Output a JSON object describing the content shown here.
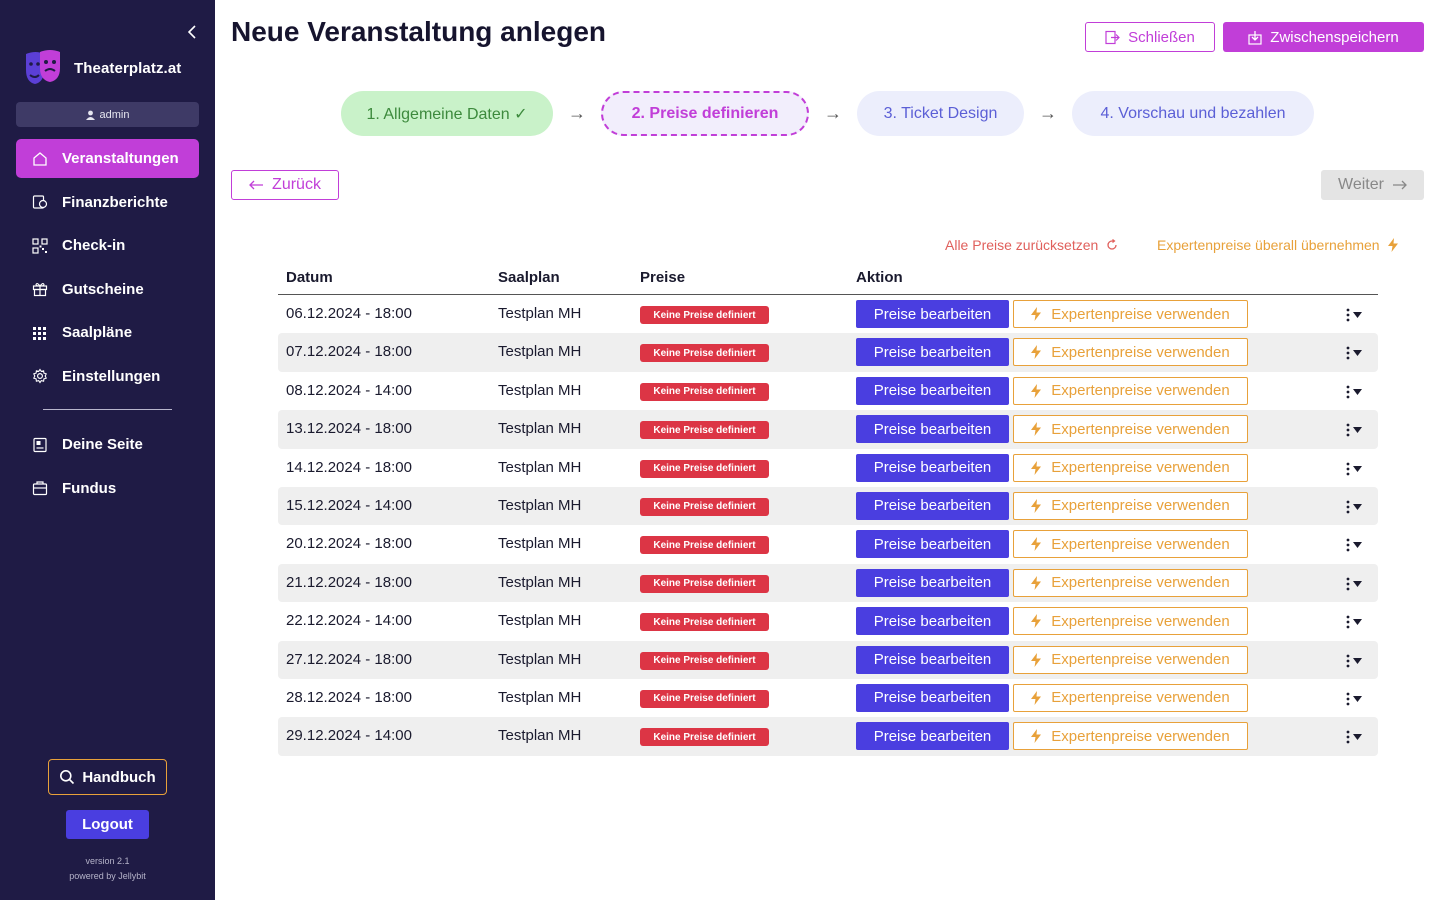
{
  "app": {
    "brand_name": "Theaterplatz.at",
    "user": "admin"
  },
  "sidebar": {
    "nav_items": [
      {
        "label": "Veranstaltungen",
        "icon": "home-icon",
        "active": true
      },
      {
        "label": "Finanzberichte",
        "icon": "finance-report-icon",
        "active": false
      },
      {
        "label": "Check-in",
        "icon": "qr-code-icon",
        "active": false
      },
      {
        "label": "Gutscheine",
        "icon": "gift-icon",
        "active": false
      },
      {
        "label": "Saalpläne",
        "icon": "seat-grid-icon",
        "active": false
      },
      {
        "label": "Einstellungen",
        "icon": "gear-icon",
        "active": false
      }
    ],
    "secondary_items": [
      {
        "label": "Deine Seite",
        "icon": "page-icon"
      },
      {
        "label": "Fundus",
        "icon": "box-icon"
      }
    ],
    "handbook_label": "Handbuch",
    "logout_label": "Logout",
    "version": "version 2.1",
    "powered_by": "powered by Jellybit"
  },
  "header": {
    "title": "Neue Veranstaltung anlegen",
    "close_label": "Schließen",
    "save_label": "Zwischenspeichern"
  },
  "steps": [
    {
      "label": "1. Allgemeine Daten ✓",
      "state": "done"
    },
    {
      "label": "2. Preise definieren",
      "state": "current"
    },
    {
      "label": "3. Ticket Design",
      "state": "upcoming"
    },
    {
      "label": "4. Vorschau und bezahlen",
      "state": "upcoming"
    }
  ],
  "step_arrow": "→",
  "nav_buttons": {
    "back_label": "Zurück",
    "next_label": "Weiter"
  },
  "actions": {
    "reset_all_label": "Alle Preise zurücksetzen",
    "expert_all_label": "Expertenpreise überall übernehmen"
  },
  "table": {
    "columns": [
      "Datum",
      "Saalplan",
      "Preise",
      "Aktion"
    ],
    "edit_label": "Preise bearbeiten",
    "expert_label": "Expertenpreise verwenden",
    "rows": [
      {
        "date": "06.12.2024 - 18:00",
        "plan": "Testplan MH",
        "status": "Keine Preise definiert"
      },
      {
        "date": "07.12.2024 - 18:00",
        "plan": "Testplan MH",
        "status": "Keine Preise definiert"
      },
      {
        "date": "08.12.2024 - 14:00",
        "plan": "Testplan MH",
        "status": "Keine Preise definiert"
      },
      {
        "date": "13.12.2024 - 18:00",
        "plan": "Testplan MH",
        "status": "Keine Preise definiert"
      },
      {
        "date": "14.12.2024 - 18:00",
        "plan": "Testplan MH",
        "status": "Keine Preise definiert"
      },
      {
        "date": "15.12.2024 - 14:00",
        "plan": "Testplan MH",
        "status": "Keine Preise definiert"
      },
      {
        "date": "20.12.2024 - 18:00",
        "plan": "Testplan MH",
        "status": "Keine Preise definiert"
      },
      {
        "date": "21.12.2024 - 18:00",
        "plan": "Testplan MH",
        "status": "Keine Preise definiert"
      },
      {
        "date": "22.12.2024 - 14:00",
        "plan": "Testplan MH",
        "status": "Keine Preise definiert"
      },
      {
        "date": "27.12.2024 - 18:00",
        "plan": "Testplan MH",
        "status": "Keine Preise definiert"
      },
      {
        "date": "28.12.2024 - 18:00",
        "plan": "Testplan MH",
        "status": "Keine Preise definiert"
      },
      {
        "date": "29.12.2024 - 14:00",
        "plan": "Testplan MH",
        "status": "Keine Preise definiert"
      }
    ]
  },
  "colors": {
    "sidebar_bg": "#1f1b45",
    "accent_magenta": "#c13ed8",
    "primary_indigo": "#4a3ee0",
    "warning_orange": "#e8a13a",
    "danger_red": "#dc3545",
    "success_green": "#c9f2c9"
  }
}
